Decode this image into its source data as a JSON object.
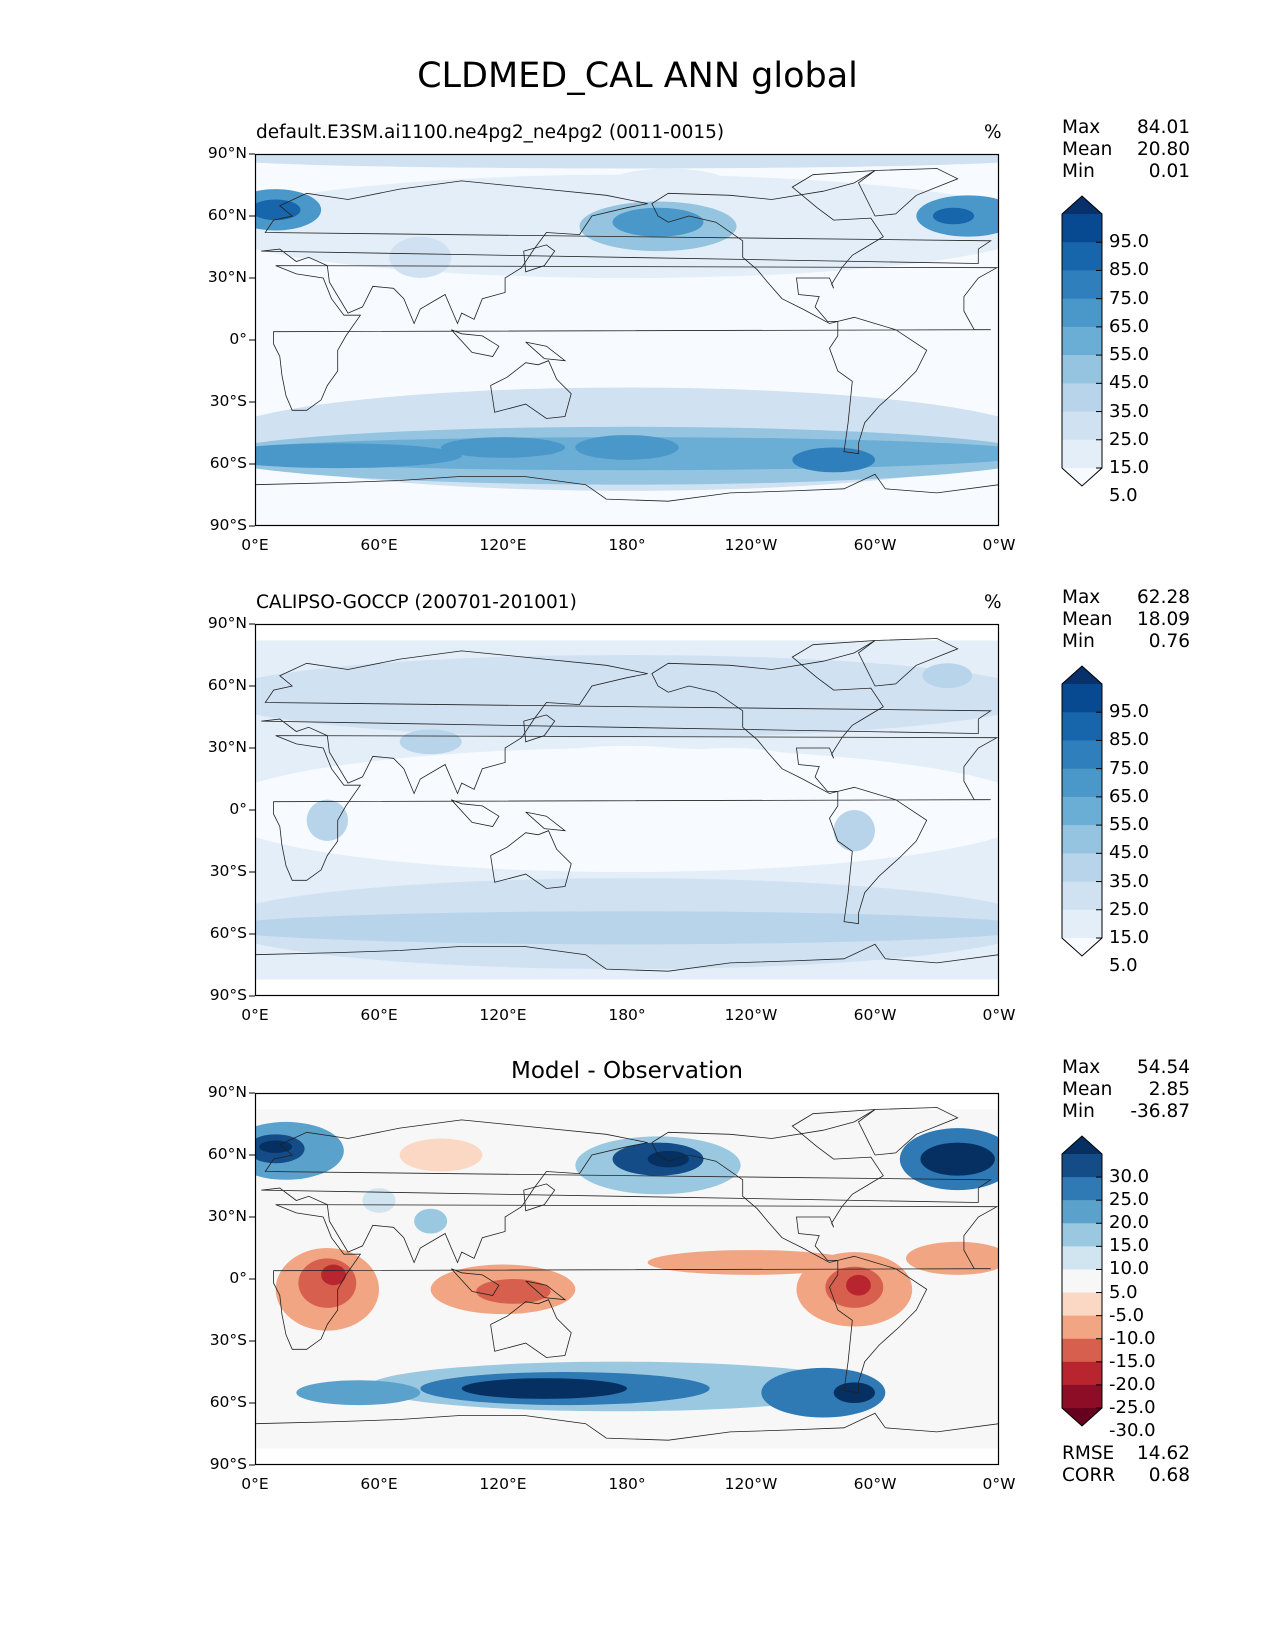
{
  "title": "CLDMED_CAL ANN global",
  "xticks": [
    "0°E",
    "60°E",
    "120°E",
    "180°",
    "120°W",
    "60°W",
    "0°W"
  ],
  "yticks": [
    "90°N",
    "60°N",
    "30°N",
    "0°",
    "30°S",
    "60°S",
    "90°S"
  ],
  "panels": [
    {
      "id": "model",
      "title": "default.E3SM.ai1100.ne4pg2_ne4pg2 (0011-0015)",
      "units": "%",
      "stats": [
        {
          "label": "Max",
          "value": "84.01"
        },
        {
          "label": "Mean",
          "value": "20.80"
        },
        {
          "label": "Min",
          "value": "0.01"
        }
      ],
      "colorbar": {
        "labels": [
          "95.0",
          "85.0",
          "75.0",
          "65.0",
          "55.0",
          "45.0",
          "35.0",
          "25.0",
          "15.0",
          "5.0"
        ],
        "colors": [
          "#08306b",
          "#084a91",
          "#1765ab",
          "#2f7fbc",
          "#4a98c9",
          "#6aadd5",
          "#94c4df",
          "#b7d4ea",
          "#d0e1f2",
          "#e3eef9",
          "#f7fbff"
        ]
      }
    },
    {
      "id": "obs",
      "title": "CALIPSO-GOCCP (200701-201001)",
      "units": "%",
      "stats": [
        {
          "label": "Max",
          "value": "62.28"
        },
        {
          "label": "Mean",
          "value": "18.09"
        },
        {
          "label": "Min",
          "value": "0.76"
        }
      ],
      "colorbar": {
        "labels": [
          "95.0",
          "85.0",
          "75.0",
          "65.0",
          "55.0",
          "45.0",
          "35.0",
          "25.0",
          "15.0",
          "5.0"
        ],
        "colors": [
          "#08306b",
          "#084a91",
          "#1765ab",
          "#2f7fbc",
          "#4a98c9",
          "#6aadd5",
          "#94c4df",
          "#b7d4ea",
          "#d0e1f2",
          "#e3eef9",
          "#f7fbff"
        ]
      }
    },
    {
      "id": "diff",
      "title": "Model - Observation",
      "units": "",
      "stats": [
        {
          "label": "Max",
          "value": "54.54"
        },
        {
          "label": "Mean",
          "value": "2.85"
        },
        {
          "label": "Min",
          "value": "-36.87"
        }
      ],
      "extra_stats": [
        {
          "label": "RMSE",
          "value": "14.62"
        },
        {
          "label": "CORR",
          "value": "0.68"
        }
      ],
      "colorbar": {
        "labels": [
          "30.0",
          "25.0",
          "20.0",
          "15.0",
          "10.0",
          "5.0",
          "-5.0",
          "-10.0",
          "-15.0",
          "-20.0",
          "-25.0",
          "-30.0"
        ],
        "colors": [
          "#053061",
          "#134c87",
          "#2f79b5",
          "#5aa2cc",
          "#9ac8e0",
          "#d1e5f0",
          "#f7f7f7",
          "#fbd8c4",
          "#f1a583",
          "#d6604d",
          "#b8252f",
          "#8c0d25",
          "#67001f"
        ]
      }
    }
  ]
}
